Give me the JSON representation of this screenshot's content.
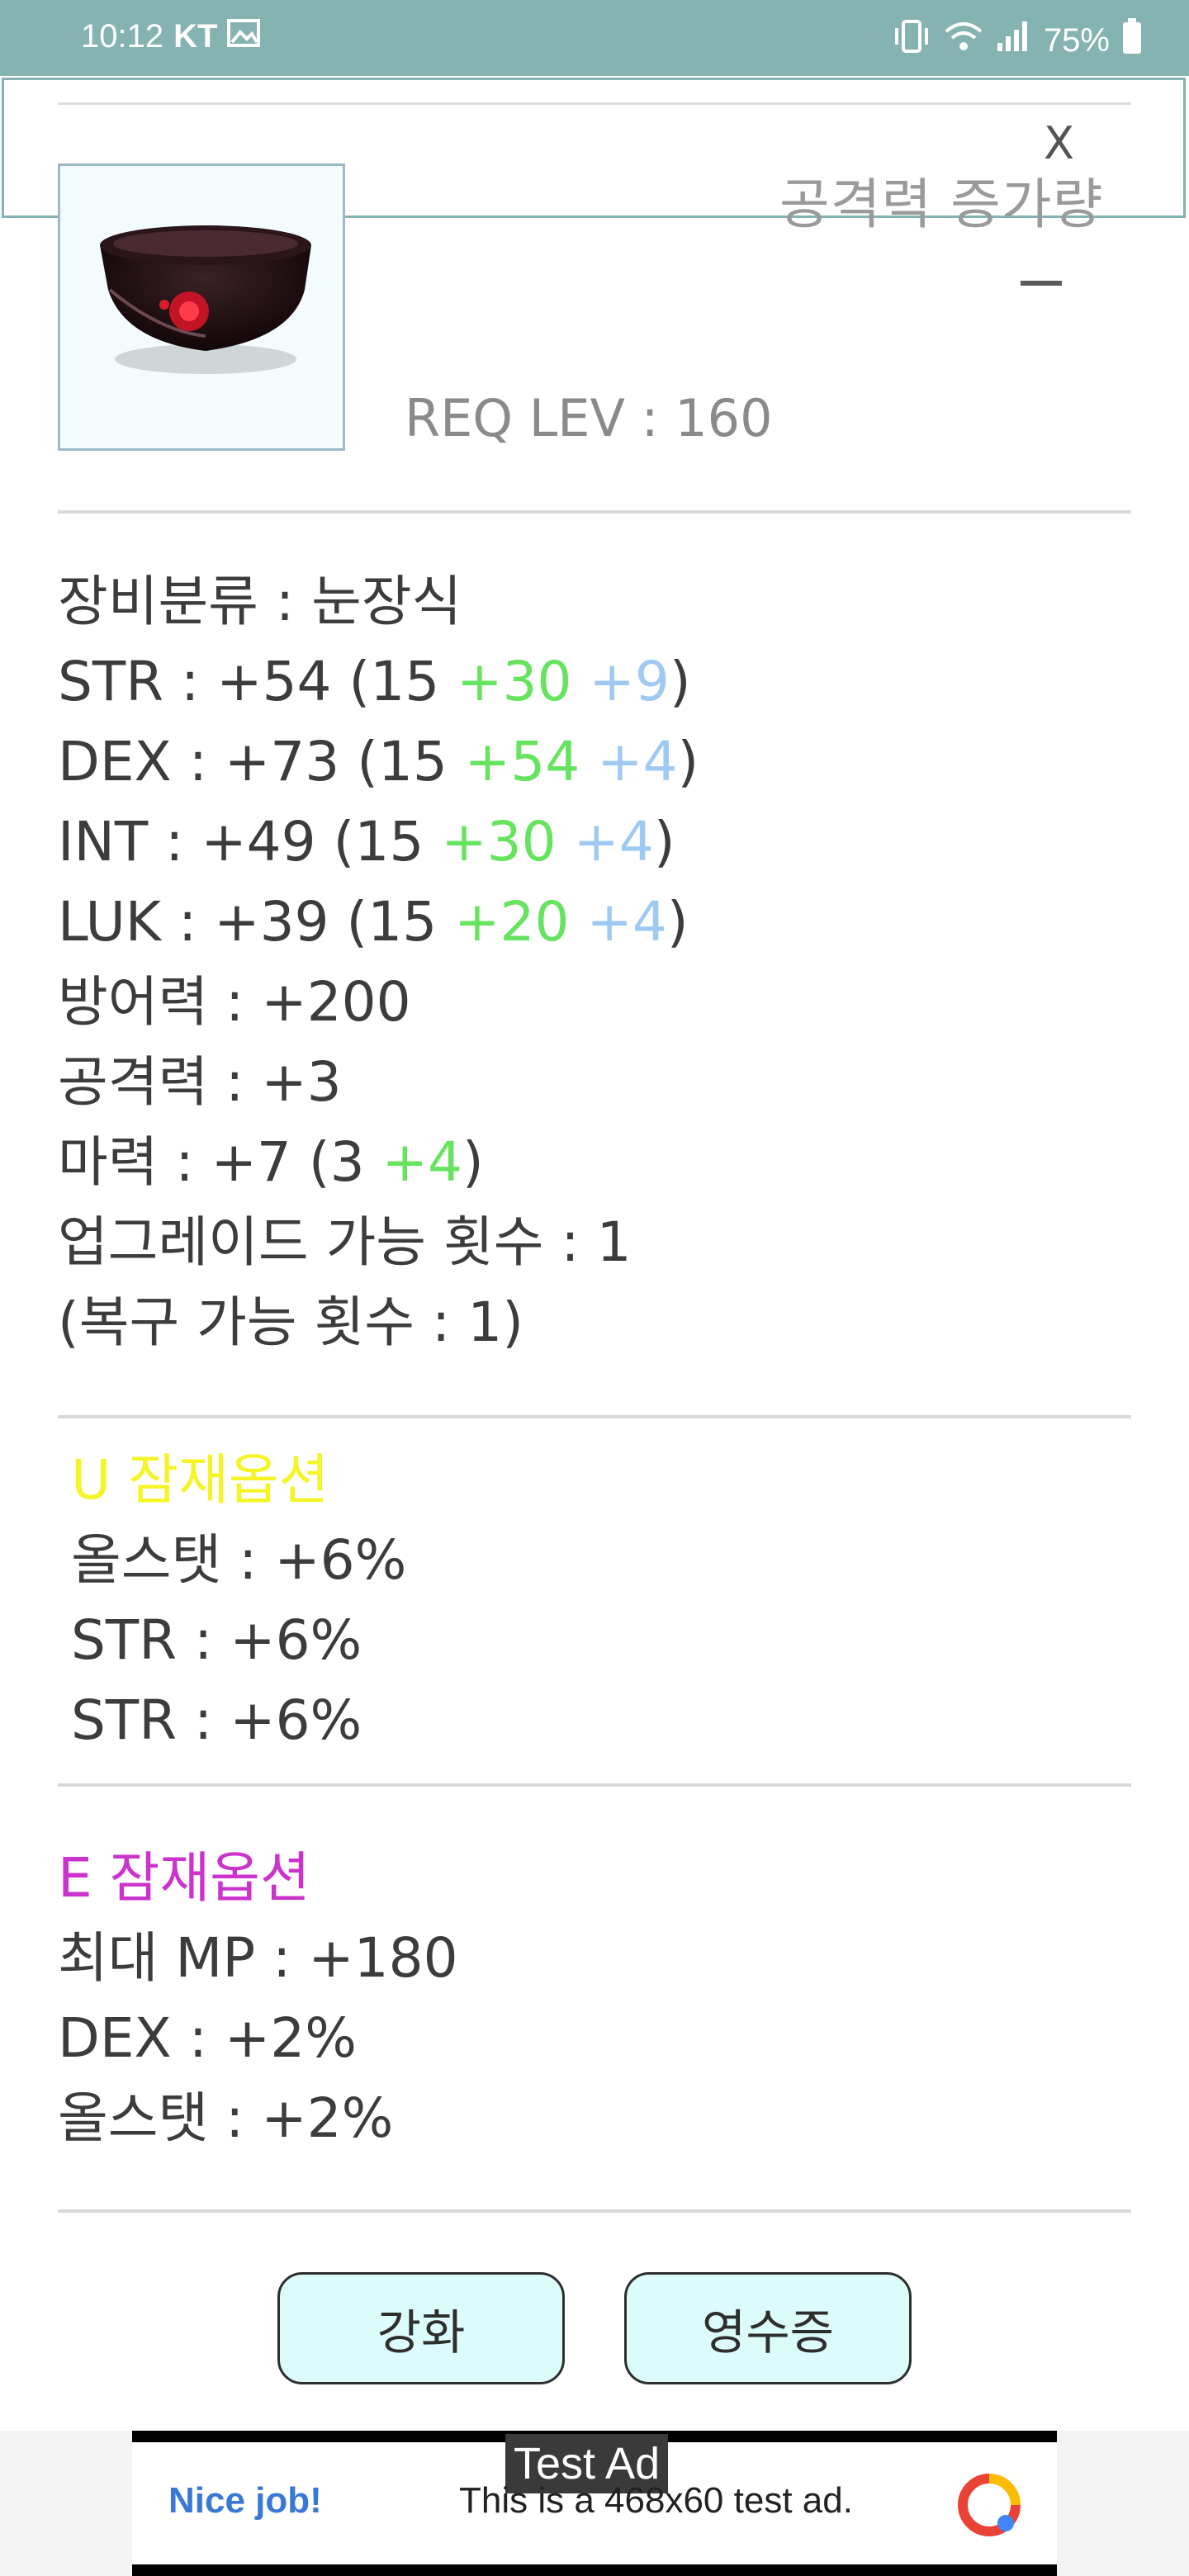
{
  "status_bar": {
    "time": "10:12",
    "carrier": "KT",
    "battery": "75%"
  },
  "header": {
    "close_label": "X",
    "attack_increase_label": "공격력 증가량",
    "req_level": "REQ LEV : 160"
  },
  "stats": {
    "category": "장비분류 : 눈장식",
    "str_base": "STR : +54 (15 ",
    "str_green": "+30",
    "str_blue": "+9",
    "dex_base": "DEX : +73 (15 ",
    "dex_green": "+54",
    "dex_blue": "+4",
    "int_base": "INT : +49 (15 ",
    "int_green": "+30",
    "int_blue": "+4",
    "luk_base": "LUK : +39 (15 ",
    "luk_green": "+20",
    "luk_blue": "+4",
    "defense": "방어력 : +200",
    "attack": "공격력 : +3",
    "magic_base": "마력 : +7 (3 ",
    "magic_green": "+4",
    "upgrades": "업그레이드 가능 횟수 : 1",
    "recover": "(복구 가능 횟수 : 1)"
  },
  "potential_u": {
    "title": "U 잠재옵션",
    "lines": [
      "올스탯 : +6%",
      "STR : +6%",
      "STR : +6%"
    ]
  },
  "potential_e": {
    "title": "E 잠재옵션",
    "lines": [
      "최대 MP : +180",
      "DEX : +2%",
      "올스탯 : +2%"
    ]
  },
  "buttons": {
    "enhance": "강화",
    "receipt": "영수증"
  },
  "ad": {
    "badge": "Test Ad",
    "nice": "Nice job!",
    "text": "This is a 468x60 test ad."
  },
  "colors": {
    "status_bar": "#84b3b2",
    "green_bonus": "#66e35f",
    "blue_bonus": "#9ec9f2",
    "unique_title": "#f4f427",
    "epic_title": "#cc33cc",
    "button_bg": "#dcfbfb"
  }
}
